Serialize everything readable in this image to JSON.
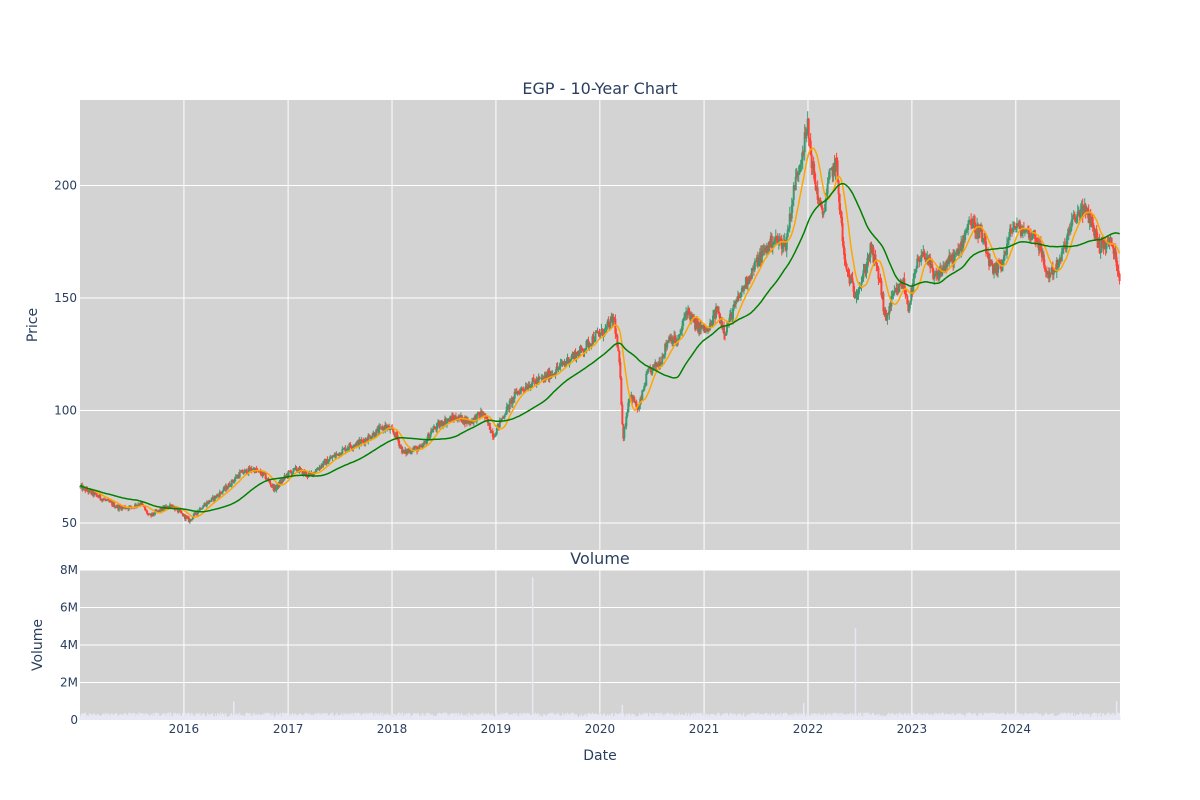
{
  "chart_data": [
    {
      "type": "candlestick",
      "title": "EGP - 10-Year Chart",
      "xlabel": "",
      "ylabel": "Price",
      "ylim": [
        38,
        238
      ],
      "xlim": [
        "2015-01-01",
        "2025-01-01"
      ],
      "y_ticks": [
        50,
        100,
        150,
        200
      ],
      "y_tick_labels": [
        "50",
        "100",
        "150",
        "200"
      ],
      "grid": true,
      "legend": "none",
      "colors": {
        "background": "#d3d3d3",
        "grid": "#ffffff",
        "up": "#3d9970",
        "down": "#ff4136",
        "ma_short": "#ffa500",
        "ma_long": "#008000"
      },
      "price_path": [
        [
          "2015-01-02",
          66
        ],
        [
          "2015-02-15",
          63
        ],
        [
          "2015-04-01",
          60
        ],
        [
          "2015-05-15",
          57
        ],
        [
          "2015-07-01",
          57
        ],
        [
          "2015-08-01",
          59
        ],
        [
          "2015-09-01",
          53
        ],
        [
          "2015-10-15",
          56
        ],
        [
          "2015-11-15",
          58
        ],
        [
          "2015-12-15",
          55
        ],
        [
          "2016-01-20",
          51
        ],
        [
          "2016-03-01",
          57
        ],
        [
          "2016-04-15",
          61
        ],
        [
          "2016-06-01",
          66
        ],
        [
          "2016-07-15",
          72
        ],
        [
          "2016-09-01",
          74
        ],
        [
          "2016-10-10",
          71
        ],
        [
          "2016-11-15",
          65
        ],
        [
          "2017-01-01",
          72
        ],
        [
          "2017-02-01",
          74
        ],
        [
          "2017-03-15",
          71
        ],
        [
          "2017-05-01",
          76
        ],
        [
          "2017-06-15",
          80
        ],
        [
          "2017-08-01",
          84
        ],
        [
          "2017-09-15",
          86
        ],
        [
          "2017-11-01",
          90
        ],
        [
          "2017-12-10",
          93
        ],
        [
          "2018-01-15",
          89
        ],
        [
          "2018-02-10",
          81
        ],
        [
          "2018-03-15",
          83
        ],
        [
          "2018-04-15",
          83
        ],
        [
          "2018-05-20",
          91
        ],
        [
          "2018-07-01",
          95
        ],
        [
          "2018-08-15",
          97
        ],
        [
          "2018-10-01",
          95
        ],
        [
          "2018-11-15",
          99
        ],
        [
          "2018-12-24",
          89
        ],
        [
          "2019-02-01",
          99
        ],
        [
          "2019-03-15",
          108
        ],
        [
          "2019-05-01",
          112
        ],
        [
          "2019-06-15",
          114
        ],
        [
          "2019-08-01",
          118
        ],
        [
          "2019-09-15",
          123
        ],
        [
          "2019-11-01",
          127
        ],
        [
          "2019-12-15",
          133
        ],
        [
          "2020-01-15",
          135
        ],
        [
          "2020-02-20",
          141
        ],
        [
          "2020-03-10",
          120
        ],
        [
          "2020-03-23",
          88
        ],
        [
          "2020-04-15",
          108
        ],
        [
          "2020-05-15",
          100
        ],
        [
          "2020-06-15",
          116
        ],
        [
          "2020-08-01",
          122
        ],
        [
          "2020-09-01",
          133
        ],
        [
          "2020-10-01",
          130
        ],
        [
          "2020-11-01",
          145
        ],
        [
          "2020-12-01",
          138
        ],
        [
          "2021-01-15",
          135
        ],
        [
          "2021-02-15",
          145
        ],
        [
          "2021-03-15",
          135
        ],
        [
          "2021-04-15",
          145
        ],
        [
          "2021-06-01",
          158
        ],
        [
          "2021-07-15",
          168
        ],
        [
          "2021-09-01",
          176
        ],
        [
          "2021-10-15",
          174
        ],
        [
          "2021-11-15",
          200
        ],
        [
          "2021-12-31",
          226
        ],
        [
          "2022-01-20",
          205
        ],
        [
          "2022-02-20",
          186
        ],
        [
          "2022-03-20",
          205
        ],
        [
          "2022-04-10",
          210
        ],
        [
          "2022-05-10",
          165
        ],
        [
          "2022-06-15",
          152
        ],
        [
          "2022-07-10",
          158
        ],
        [
          "2022-08-10",
          172
        ],
        [
          "2022-09-10",
          158
        ],
        [
          "2022-09-30",
          140
        ],
        [
          "2022-10-25",
          150
        ],
        [
          "2022-12-01",
          157
        ],
        [
          "2022-12-20",
          146
        ],
        [
          "2023-01-20",
          165
        ],
        [
          "2023-02-20",
          170
        ],
        [
          "2023-03-20",
          158
        ],
        [
          "2023-05-01",
          165
        ],
        [
          "2023-06-15",
          170
        ],
        [
          "2023-07-20",
          185
        ],
        [
          "2023-09-01",
          178
        ],
        [
          "2023-10-15",
          160
        ],
        [
          "2023-11-20",
          168
        ],
        [
          "2023-12-20",
          182
        ],
        [
          "2024-02-01",
          180
        ],
        [
          "2024-03-15",
          177
        ],
        [
          "2024-04-20",
          160
        ],
        [
          "2024-06-01",
          165
        ],
        [
          "2024-07-15",
          183
        ],
        [
          "2024-08-20",
          190
        ],
        [
          "2024-09-20",
          185
        ],
        [
          "2024-10-20",
          173
        ],
        [
          "2024-12-01",
          175
        ],
        [
          "2024-12-31",
          160
        ]
      ]
    },
    {
      "type": "bar",
      "title": "Volume",
      "xlabel": "Date",
      "ylabel": "Volume",
      "ylim": [
        0,
        8000000
      ],
      "y_ticks": [
        0,
        2000000,
        4000000,
        6000000,
        8000000
      ],
      "y_tick_labels": [
        "0",
        "2M",
        "4M",
        "6M",
        "8M"
      ],
      "x_ticks": [
        "2016-01-01",
        "2017-01-01",
        "2018-01-01",
        "2019-01-01",
        "2020-01-01",
        "2021-01-01",
        "2022-01-01",
        "2023-01-01",
        "2024-01-01"
      ],
      "x_tick_labels": [
        "2016",
        "2017",
        "2018",
        "2019",
        "2020",
        "2021",
        "2022",
        "2023",
        "2024"
      ],
      "baseline_volume": 250000,
      "spikes": [
        {
          "date": "2019-05-10",
          "value": 7600000
        },
        {
          "date": "2022-06-17",
          "value": 4900000
        },
        {
          "date": "2016-06-24",
          "value": 1000000
        },
        {
          "date": "2020-03-20",
          "value": 800000
        },
        {
          "date": "2021-12-17",
          "value": 900000
        },
        {
          "date": "2024-12-20",
          "value": 1000000
        }
      ],
      "grid": true,
      "colors": {
        "background": "#d3d3d3",
        "grid": "#ffffff",
        "bar": "#e8e8f4"
      }
    }
  ]
}
